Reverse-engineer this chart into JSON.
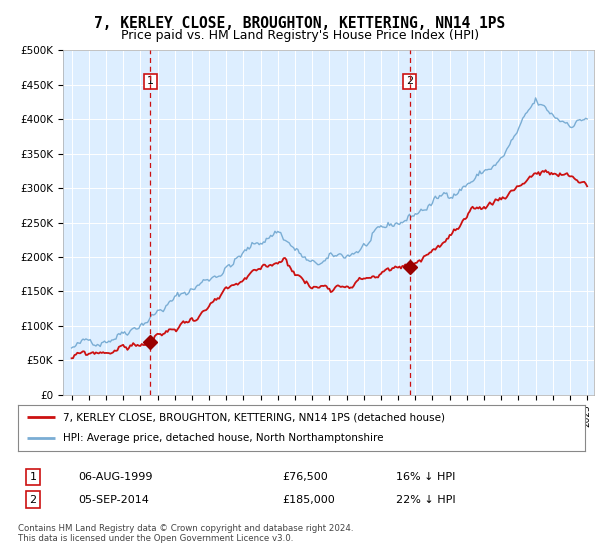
{
  "title": "7, KERLEY CLOSE, BROUGHTON, KETTERING, NN14 1PS",
  "subtitle": "Price paid vs. HM Land Registry's House Price Index (HPI)",
  "title_fontsize": 10.5,
  "subtitle_fontsize": 9,
  "background_color": "#ffffff",
  "plot_bg_color": "#ddeeff",
  "grid_color": "#ffffff",
  "ylim": [
    0,
    500000
  ],
  "yticks": [
    0,
    50000,
    100000,
    150000,
    200000,
    250000,
    300000,
    350000,
    400000,
    450000,
    500000
  ],
  "ytick_labels": [
    "£0",
    "£50K",
    "£100K",
    "£150K",
    "£200K",
    "£250K",
    "£300K",
    "£350K",
    "£400K",
    "£450K",
    "£500K"
  ],
  "hpi_color": "#7aadd4",
  "price_color": "#cc1111",
  "sale1_label": "1",
  "sale2_label": "2",
  "sale1_year": 1999.58,
  "sale2_year": 2014.67,
  "sale1_price": 76500,
  "sale2_price": 185000,
  "legend_entries": [
    "7, KERLEY CLOSE, BROUGHTON, KETTERING, NN14 1PS (detached house)",
    "HPI: Average price, detached house, North Northamptonshire"
  ],
  "annotation1": [
    "1",
    "06-AUG-1999",
    "£76,500",
    "16% ↓ HPI"
  ],
  "annotation2": [
    "2",
    "05-SEP-2014",
    "£185,000",
    "22% ↓ HPI"
  ],
  "footnote": "Contains HM Land Registry data © Crown copyright and database right 2024.\nThis data is licensed under the Open Government Licence v3.0.",
  "vline_color": "#cc1111",
  "marker_color": "#990000"
}
